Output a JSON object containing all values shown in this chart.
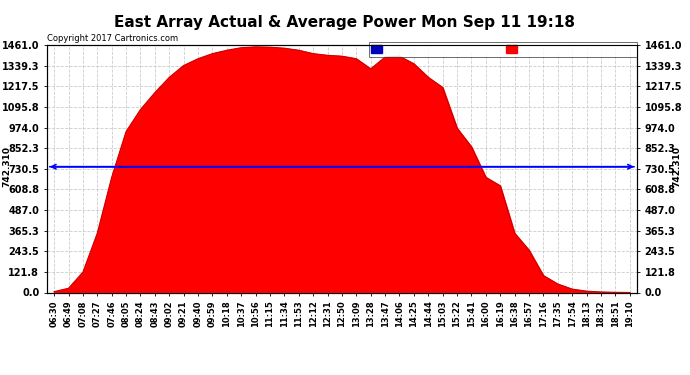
{
  "title": "East Array Actual & Average Power Mon Sep 11 19:18",
  "copyright": "Copyright 2017 Cartronics.com",
  "yticks": [
    0.0,
    121.8,
    243.5,
    365.3,
    487.0,
    608.8,
    730.5,
    852.3,
    974.0,
    1095.8,
    1217.5,
    1339.3,
    1461.0
  ],
  "ylim": [
    0,
    1461.0
  ],
  "hline_value": 742.31,
  "hline_label": "742.310",
  "bg_color": "#ffffff",
  "grid_color": "#cccccc",
  "fill_color": "#ff0000",
  "line_color": "#cc0000",
  "hline_color": "#0000ff",
  "legend_avg_color": "#0000bb",
  "legend_east_color": "#ff0000",
  "time_labels": [
    "06:30",
    "06:49",
    "07:08",
    "07:27",
    "07:46",
    "08:05",
    "08:24",
    "08:43",
    "09:02",
    "09:21",
    "09:40",
    "09:59",
    "10:18",
    "10:37",
    "10:56",
    "11:15",
    "11:34",
    "11:53",
    "12:12",
    "12:31",
    "12:50",
    "13:09",
    "13:28",
    "13:47",
    "14:06",
    "14:25",
    "14:44",
    "15:03",
    "15:22",
    "15:41",
    "16:00",
    "16:19",
    "16:38",
    "16:57",
    "17:16",
    "17:35",
    "17:54",
    "18:13",
    "18:32",
    "18:51",
    "19:10"
  ],
  "power_values": [
    5,
    25,
    120,
    350,
    680,
    950,
    1080,
    1180,
    1270,
    1340,
    1380,
    1410,
    1430,
    1445,
    1450,
    1448,
    1442,
    1430,
    1410,
    1400,
    1395,
    1380,
    1320,
    1390,
    1395,
    1350,
    1270,
    1210,
    970,
    860,
    680,
    630,
    350,
    250,
    100,
    50,
    20,
    8,
    3,
    1,
    0
  ],
  "title_fontsize": 11,
  "tick_fontsize": 7,
  "xtick_fontsize": 6
}
